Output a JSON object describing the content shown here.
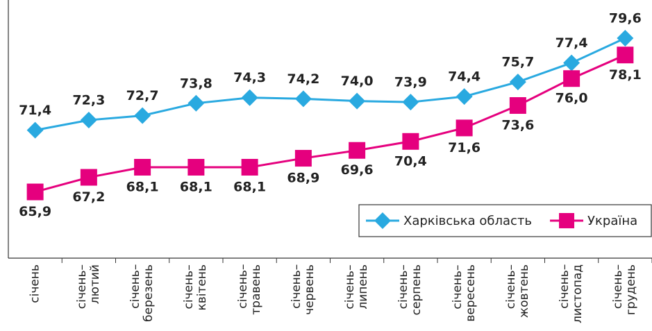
{
  "chart_data": {
    "type": "line",
    "categories": [
      "січень",
      "січень–\nлютий",
      "січень–\nберезень",
      "січень–\nквітень",
      "січень–\nтравень",
      "січень–\nчервень",
      "січень–\nлипень",
      "січень–\nсерпень",
      "січень–\nвересень",
      "січень–\nжовтень",
      "січень–\nлистопад",
      "січень–\nгрудень"
    ],
    "series": [
      {
        "name": "Харківська область",
        "color": "#29a9e0",
        "marker": "diamond",
        "values": [
          71.4,
          72.3,
          72.7,
          73.8,
          74.3,
          74.2,
          74.0,
          73.9,
          74.4,
          75.7,
          77.4,
          79.6
        ],
        "value_labels": [
          "71,4",
          "72,3",
          "72,7",
          "73,8",
          "74,3",
          "74,2",
          "74,0",
          "73,9",
          "74,4",
          "75,7",
          "77,4",
          "79,6"
        ]
      },
      {
        "name": "Україна",
        "color": "#e5007e",
        "marker": "square",
        "values": [
          65.9,
          67.2,
          68.1,
          68.1,
          68.1,
          68.9,
          69.6,
          70.4,
          71.6,
          73.6,
          76.0,
          78.1
        ],
        "value_labels": [
          "65,9",
          "67,2",
          "68,1",
          "68,1",
          "68,1",
          "68,9",
          "69,6",
          "70,4",
          "71,6",
          "73,6",
          "76,0",
          "78,1"
        ]
      }
    ],
    "ylim": [
      60,
      83
    ],
    "grid": false,
    "legend": "lower right"
  }
}
